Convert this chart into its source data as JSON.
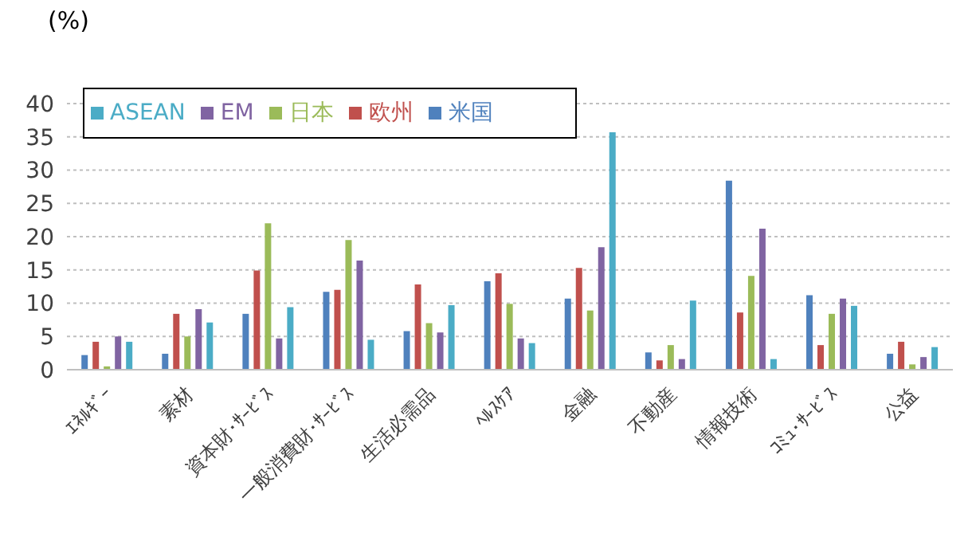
{
  "chart_data": {
    "type": "bar",
    "ylabel": "(%)",
    "categories": [
      "ｴﾈﾙｷﾞｰ",
      "素材",
      "資本財･ｻｰﾋﾞｽ",
      "一般消費財･ｻｰﾋﾞｽ",
      "生活必需品",
      "ﾍﾙｽｹｱ",
      "金融",
      "不動産",
      "情報技術",
      "ｺﾐｭ･ｻｰﾋﾞｽ",
      "公益"
    ],
    "series": [
      {
        "name": "米国",
        "color": "#4f81bd",
        "values": [
          2.2,
          2.4,
          8.4,
          11.7,
          5.8,
          13.3,
          10.7,
          2.6,
          28.4,
          11.2,
          2.4
        ]
      },
      {
        "name": "欧州",
        "color": "#c0504d",
        "values": [
          4.2,
          8.4,
          14.9,
          12.0,
          12.8,
          14.5,
          15.3,
          1.4,
          8.6,
          3.7,
          4.2
        ]
      },
      {
        "name": "日本",
        "color": "#9bbb59",
        "values": [
          0.5,
          5.0,
          22.0,
          19.5,
          7.0,
          9.9,
          8.9,
          3.7,
          14.1,
          8.4,
          0.8
        ]
      },
      {
        "name": "EM",
        "color": "#8064a2",
        "values": [
          5.0,
          9.1,
          4.7,
          16.4,
          5.6,
          4.7,
          18.4,
          1.6,
          21.2,
          10.7,
          1.9
        ]
      },
      {
        "name": "ASEAN",
        "color": "#4bacc6",
        "values": [
          4.2,
          7.1,
          9.4,
          4.5,
          9.7,
          4.0,
          35.7,
          10.4,
          1.6,
          9.6,
          3.4
        ]
      }
    ],
    "ylim": [
      0,
      40
    ],
    "yticks": [
      0,
      5,
      10,
      15,
      20,
      25,
      30,
      35,
      40
    ],
    "grid": "y",
    "legend": "top left"
  }
}
